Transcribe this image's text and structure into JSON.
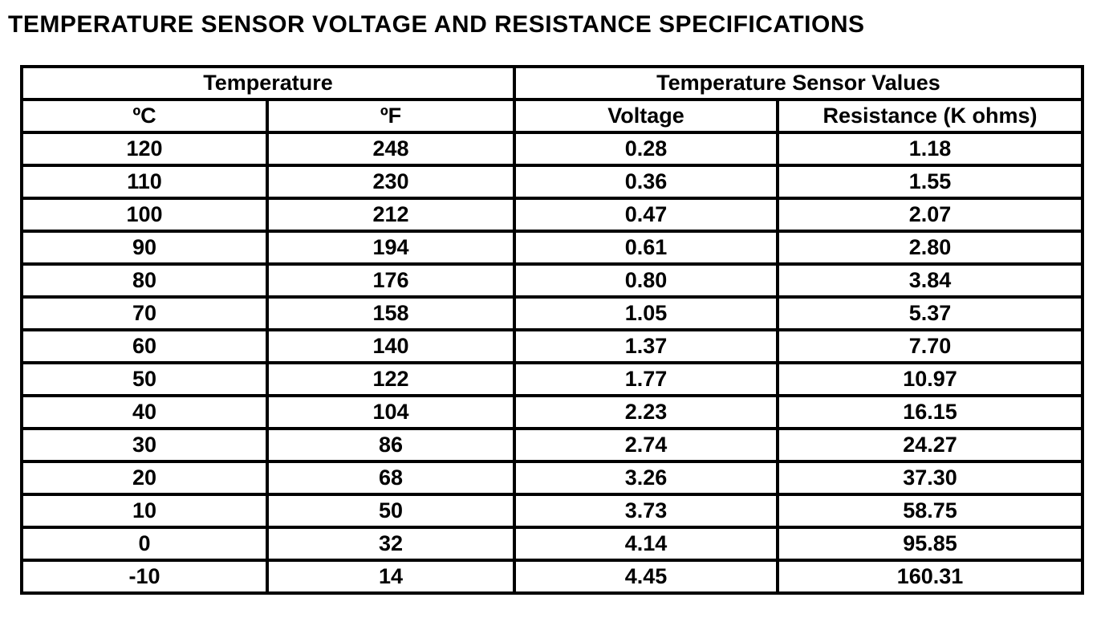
{
  "page_title": "TEMPERATURE SENSOR VOLTAGE AND RESISTANCE SPECIFICATIONS",
  "table": {
    "group_headers": [
      {
        "label": "Temperature",
        "colspan": 2
      },
      {
        "label": "Temperature Sensor Values",
        "colspan": 2
      }
    ],
    "column_headers": [
      "ºC",
      "ºF",
      "Voltage",
      "Resistance (K ohms)"
    ],
    "rows": [
      [
        "120",
        "248",
        "0.28",
        "1.18"
      ],
      [
        "110",
        "230",
        "0.36",
        "1.55"
      ],
      [
        "100",
        "212",
        "0.47",
        "2.07"
      ],
      [
        "90",
        "194",
        "0.61",
        "2.80"
      ],
      [
        "80",
        "176",
        "0.80",
        "3.84"
      ],
      [
        "70",
        "158",
        "1.05",
        "5.37"
      ],
      [
        "60",
        "140",
        "1.37",
        "7.70"
      ],
      [
        "50",
        "122",
        "1.77",
        "10.97"
      ],
      [
        "40",
        "104",
        "2.23",
        "16.15"
      ],
      [
        "30",
        "86",
        "2.74",
        "24.27"
      ],
      [
        "20",
        "68",
        "3.26",
        "37.30"
      ],
      [
        "10",
        "50",
        "3.73",
        "58.75"
      ],
      [
        "0",
        "32",
        "4.14",
        "95.85"
      ],
      [
        "-10",
        "14",
        "4.45",
        "160.31"
      ]
    ]
  },
  "colors": {
    "border": "#000000",
    "text": "#000000",
    "background": "#ffffff"
  }
}
